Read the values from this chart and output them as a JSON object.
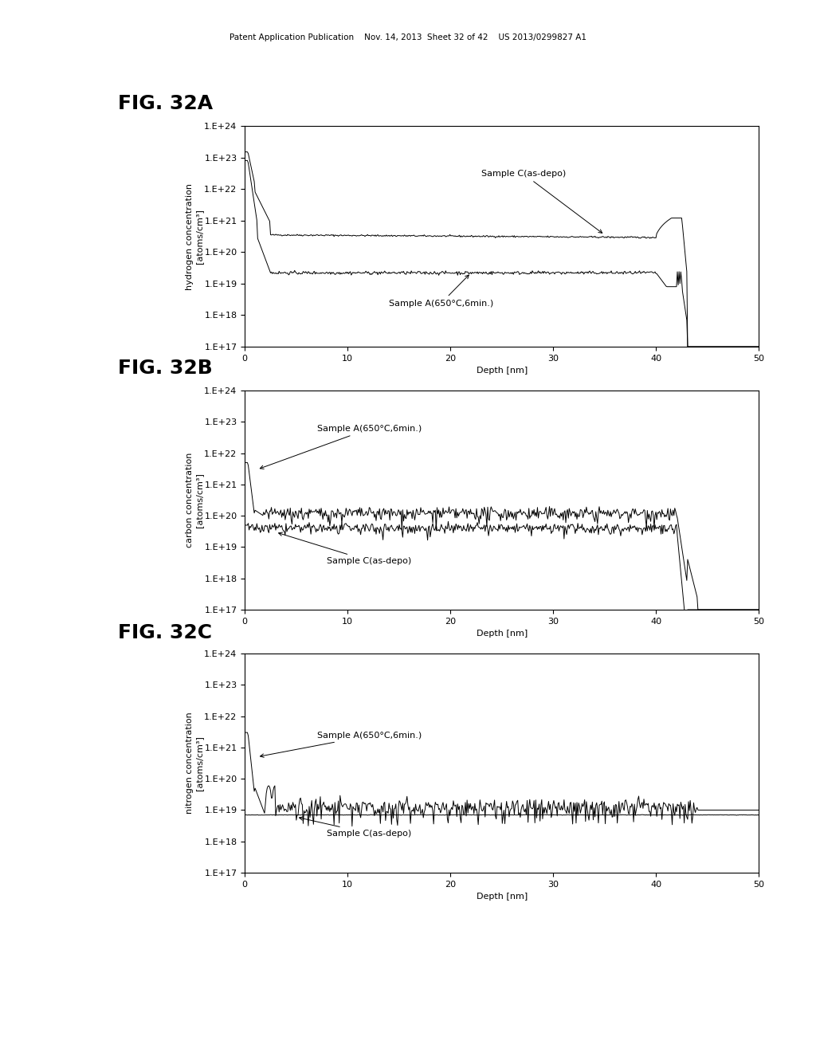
{
  "fig_width": 10.24,
  "fig_height": 13.2,
  "dpi": 100,
  "background_color": "#ffffff",
  "header_text": "Patent Application Publication    Nov. 14, 2013  Sheet 32 of 42    US 2013/0299827 A1",
  "fig_labels": [
    "FIG. 32A",
    "FIG. 32B",
    "FIG. 32C"
  ],
  "xlabel": "Depth [nm]",
  "xlim": [
    0,
    50
  ],
  "xticks": [
    0,
    10,
    20,
    30,
    40,
    50
  ],
  "ytick_labels": [
    "1.E+17",
    "1.E+18",
    "1.E+19",
    "1.E+20",
    "1.E+21",
    "1.E+22",
    "1.E+23",
    "1.E+24"
  ],
  "ylabels": [
    "hydrogen concentration\n[atoms/cm³]",
    "carbon concentration\n[atoms/cm³]",
    "nitrogen concentration\n[atoms/cm³]"
  ],
  "line_color": "#000000",
  "annotation_fontsize": 8,
  "label_fontsize": 8,
  "tick_fontsize": 8,
  "fig_label_fontsize": 18,
  "header_fontsize": 7.5
}
